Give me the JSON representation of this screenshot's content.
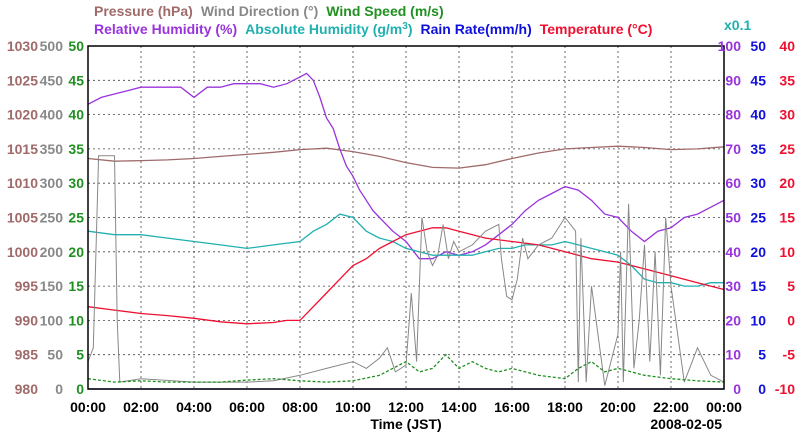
{
  "chart_data": {
    "type": "line",
    "date_label": "2008-02-05",
    "x_axis": {
      "label": "Time (JST)",
      "ticks": [
        "00:00",
        "02:00",
        "04:00",
        "06:00",
        "08:00",
        "10:00",
        "12:00",
        "14:00",
        "16:00",
        "18:00",
        "20:00",
        "22:00",
        "00:00"
      ],
      "range_hours": [
        0,
        24
      ]
    },
    "left_axes": [
      {
        "name": "Pressure (hPa)",
        "color": "#a06a6a",
        "range": [
          980,
          1030
        ],
        "ticks": [
          "1030",
          "1025",
          "1020",
          "1015",
          "1010",
          "1005",
          "1000",
          "995",
          "990",
          "985",
          "980"
        ]
      },
      {
        "name": "Wind Direction (°)",
        "color": "#888888",
        "range": [
          0,
          500
        ],
        "ticks": [
          "500",
          "450",
          "400",
          "350",
          "300",
          "250",
          "200",
          "150",
          "100",
          "50",
          "0"
        ]
      },
      {
        "name": "Wind Speed (m/s)",
        "color": "#209020",
        "range": [
          0,
          50
        ],
        "ticks": [
          "50",
          "45",
          "40",
          "35",
          "30",
          "25",
          "20",
          "15",
          "10",
          "5",
          "0"
        ]
      }
    ],
    "right_axes": [
      {
        "name": "Relative Humidity (%)",
        "color": "#9933dd",
        "range": [
          0,
          100
        ],
        "ticks": [
          "100",
          "90",
          "80",
          "70",
          "60",
          "50",
          "40",
          "30",
          "20",
          "10",
          "0"
        ]
      },
      {
        "name": "Absolute Humidity (g/m³)",
        "color": "#20b0b0",
        "range": [
          0,
          50
        ],
        "scale_note": "x0.1",
        "ticks": [
          "50",
          "45",
          "40",
          "35",
          "30",
          "25",
          "20",
          "15",
          "10",
          "5",
          "0"
        ]
      },
      {
        "name": "Rain Rate(mm/h)",
        "color": "#1010dd",
        "range": [
          0,
          50
        ],
        "ticks": [
          "50",
          "45",
          "40",
          "35",
          "30",
          "25",
          "20",
          "15",
          "10",
          "5",
          "0"
        ]
      },
      {
        "name": "Temperature (°C)",
        "color": "#ee1030",
        "range": [
          -10,
          40
        ],
        "ticks": [
          "40",
          "35",
          "30",
          "25",
          "20",
          "15",
          "10",
          "5",
          "0",
          "-5",
          "-10"
        ]
      }
    ],
    "legend_row1": [
      {
        "text": "Pressure (hPa)",
        "color": "#a06a6a"
      },
      {
        "text": "Wind Direction (°)",
        "color": "#888888"
      },
      {
        "text": "Wind Speed (m/s)",
        "color": "#209020"
      }
    ],
    "legend_row2": [
      {
        "text": "Relative Humidity (%)",
        "color": "#9933dd"
      },
      {
        "text": "Absolute Humidity (g/m",
        "sup": "3",
        "tail": ")",
        "color": "#20b0b0"
      },
      {
        "text": "Rain Rate(mm/h)",
        "color": "#1010dd"
      },
      {
        "text": "Temperature (°C)",
        "color": "#ee1030"
      }
    ],
    "scale_note": {
      "text": "x0.1",
      "color": "#20b0b0"
    },
    "grid": true,
    "series": [
      {
        "name": "Pressure (hPa)",
        "axis": "pressure",
        "color": "#a06a6a",
        "style": "solid",
        "x": [
          0,
          1,
          2,
          3,
          4,
          5,
          6,
          7,
          8,
          9,
          10,
          11,
          12,
          13,
          14,
          15,
          16,
          17,
          18,
          19,
          20,
          21,
          22,
          23,
          24
        ],
        "y": [
          1013.6,
          1013.2,
          1013.3,
          1013.4,
          1013.6,
          1013.9,
          1014.2,
          1014.5,
          1014.9,
          1015.1,
          1014.6,
          1013.9,
          1013,
          1012.3,
          1012.2,
          1012.7,
          1013.6,
          1014.4,
          1015,
          1015.2,
          1015.4,
          1015.2,
          1014.9,
          1015,
          1015.3
        ]
      },
      {
        "name": "Relative Humidity (%)",
        "axis": "rh",
        "color": "#9933dd",
        "style": "solid",
        "x": [
          0,
          0.5,
          1,
          1.5,
          2,
          2.5,
          3,
          3.5,
          4,
          4.5,
          5,
          5.5,
          6,
          6.5,
          7,
          7.5,
          8,
          8.25,
          8.5,
          8.75,
          9,
          9.25,
          9.5,
          9.75,
          10,
          10.25,
          10.5,
          10.75,
          11,
          11.5,
          12,
          12.5,
          13,
          13.5,
          14,
          14.5,
          15,
          15.5,
          16,
          16.5,
          17,
          17.5,
          18,
          18.5,
          19,
          19.5,
          20,
          20.5,
          21,
          21.5,
          22,
          22.5,
          23,
          23.5,
          24
        ],
        "y": [
          83,
          85,
          86,
          87,
          88,
          88,
          88,
          88,
          85,
          88,
          88,
          89,
          89,
          89,
          88,
          89,
          91,
          92,
          90,
          85,
          79,
          76,
          70,
          65,
          62,
          58,
          55,
          52,
          50,
          46,
          43,
          38,
          38,
          40,
          39,
          40,
          42,
          45,
          48,
          52,
          55,
          57,
          59,
          58,
          55,
          51,
          50,
          46,
          43,
          46,
          47,
          50,
          51,
          53,
          55
        ]
      },
      {
        "name": "Absolute Humidity (g/m³)",
        "axis": "ah",
        "color": "#20b0b0",
        "style": "solid",
        "x": [
          0,
          1,
          2,
          3,
          4,
          5,
          6,
          7,
          8,
          8.5,
          9,
          9.5,
          10,
          10.5,
          11,
          11.5,
          12,
          12.5,
          13,
          13.5,
          14,
          14.5,
          15,
          15.5,
          16,
          16.5,
          17,
          17.5,
          18,
          18.5,
          19,
          19.5,
          20,
          20.5,
          21,
          21.5,
          22,
          22.5,
          23,
          23.5,
          24
        ],
        "y": [
          23,
          22.5,
          22.5,
          22,
          21.5,
          21,
          20.5,
          21,
          21.5,
          23,
          24,
          25.5,
          25,
          23,
          22,
          21.5,
          20.5,
          20,
          19.5,
          19.5,
          19.5,
          19.5,
          20,
          20.5,
          20.5,
          21,
          21,
          21,
          21.5,
          21,
          20.5,
          20,
          19.5,
          18,
          16,
          15.5,
          15.5,
          15,
          15,
          15.5,
          15.5
        ]
      },
      {
        "name": "Temperature (°C)",
        "axis": "temp",
        "color": "#ee1030",
        "style": "solid",
        "x": [
          0,
          1,
          2,
          3,
          4,
          5,
          6,
          7,
          7.5,
          8,
          8.5,
          9,
          9.5,
          10,
          10.5,
          11,
          11.5,
          12,
          12.5,
          13,
          13.5,
          14,
          15,
          16,
          17,
          18,
          19,
          20,
          21,
          22,
          23,
          24
        ],
        "y": [
          2,
          1.5,
          1,
          0.7,
          0.3,
          -0.2,
          -0.5,
          -0.3,
          0,
          0,
          2,
          4,
          6,
          8,
          9,
          10.5,
          11.5,
          12.5,
          13,
          13.5,
          13.5,
          13,
          12,
          11.5,
          11,
          10,
          9,
          8.5,
          7.5,
          6.5,
          5.5,
          4.5
        ]
      },
      {
        "name": "Wind Direction (°)",
        "axis": "wdir",
        "color": "#888888",
        "style": "solid",
        "x": [
          0,
          0.2,
          0.4,
          0.5,
          1,
          1.1,
          1.2,
          2,
          4,
          6,
          7,
          8,
          9,
          10,
          10.5,
          11,
          11.3,
          11.6,
          12,
          12.2,
          12.4,
          12.6,
          12.8,
          13,
          13.2,
          13.4,
          13.6,
          13.8,
          14,
          14.5,
          15,
          15.5,
          15.6,
          15.8,
          16,
          16.2,
          16.4,
          16.6,
          17,
          17.5,
          18,
          18.4,
          18.5,
          18.6,
          18.8,
          19,
          19.5,
          20,
          20.1,
          20.2,
          20.4,
          20.6,
          20.8,
          21,
          21.2,
          21.4,
          21.6,
          21.8,
          22,
          22.5,
          23,
          23.5,
          24
        ],
        "y": [
          40,
          60,
          340,
          340,
          340,
          100,
          10,
          15,
          10,
          10,
          12,
          20,
          30,
          40,
          30,
          45,
          60,
          25,
          35,
          140,
          40,
          250,
          200,
          180,
          195,
          240,
          190,
          215,
          200,
          210,
          230,
          240,
          190,
          135,
          130,
          160,
          220,
          190,
          210,
          220,
          250,
          230,
          10,
          220,
          10,
          150,
          5,
          80,
          200,
          10,
          270,
          30,
          100,
          210,
          40,
          200,
          20,
          250,
          150,
          10,
          60,
          20,
          10
        ]
      },
      {
        "name": "Wind Speed (m/s)",
        "axis": "wspd",
        "color": "#209020",
        "style": "dashed",
        "x": [
          0,
          1,
          2,
          3,
          4,
          5,
          6,
          7,
          8,
          9,
          10,
          11,
          11.5,
          12,
          12.5,
          13,
          13.5,
          14,
          14.5,
          15,
          15.5,
          16,
          17,
          18,
          18.5,
          19,
          19.5,
          20,
          21,
          22,
          23,
          24
        ],
        "y": [
          1.5,
          1,
          1.2,
          1,
          1,
          1,
          1.3,
          1.5,
          1.2,
          1,
          1.2,
          2,
          3,
          4,
          2.5,
          3,
          5,
          3,
          4,
          3,
          2.5,
          3,
          2,
          1.5,
          3,
          4,
          2.5,
          3,
          2,
          1.5,
          1.2,
          1
        ]
      },
      {
        "name": "Rain Rate(mm/h)",
        "axis": "rain",
        "color": "#1010dd",
        "style": "solid",
        "x": [
          0,
          24
        ],
        "y": [
          0,
          0
        ]
      }
    ]
  }
}
